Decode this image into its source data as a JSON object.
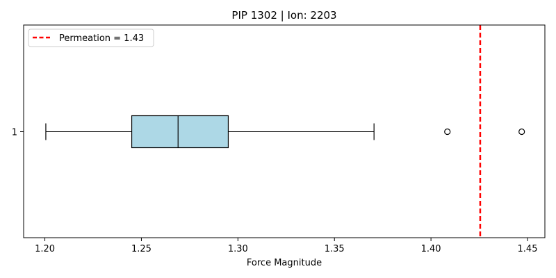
{
  "chart_data": {
    "type": "boxplot",
    "orientation": "horizontal",
    "title": "PIP 1302 | Ion: 2203",
    "xlabel": "Force Magnitude",
    "ylabel": "",
    "xlim": [
      1.189,
      1.459
    ],
    "xticks": [
      1.2,
      1.25,
      1.3,
      1.35,
      1.4,
      1.45
    ],
    "xtick_labels": [
      "1.20",
      "1.25",
      "1.30",
      "1.35",
      "1.40",
      "1.45"
    ],
    "ytick_labels": [
      "1"
    ],
    "grid": false,
    "series": [
      {
        "category": "1",
        "whisker_low": 1.2005,
        "q1": 1.245,
        "median": 1.269,
        "q3": 1.295,
        "whisker_high": 1.3705,
        "outliers": [
          1.4085,
          1.447
        ],
        "box_color": "#add8e6"
      }
    ],
    "reference_line": {
      "label": "Permeation = 1.43",
      "value": 1.4255,
      "color": "#ff0000",
      "style": "dashed"
    },
    "legend": {
      "position": "top-left",
      "entries": [
        "Permeation = 1.43"
      ]
    }
  }
}
